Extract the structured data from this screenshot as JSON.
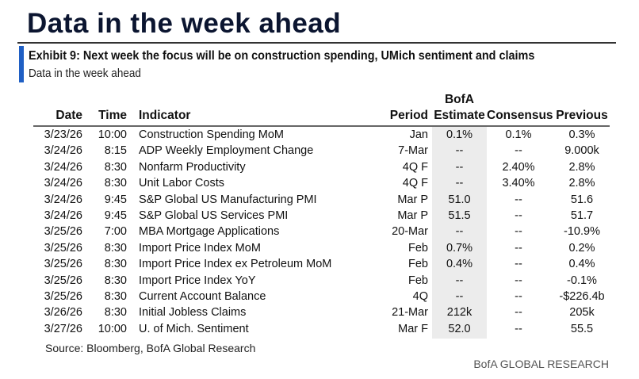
{
  "title": "Data in the week ahead",
  "exhibit_title": "Exhibit 9: Next week the focus will be on construction spending, UMich sentiment and claims",
  "exhibit_subtitle": "Data in the week ahead",
  "headers": {
    "date": "Date",
    "time": "Time",
    "indicator": "Indicator",
    "period": "Period",
    "estimate_top": "BofA",
    "estimate": "Estimate",
    "consensus": "Consensus",
    "previous": "Previous"
  },
  "rows": [
    {
      "date": "3/23/26",
      "time": "10:00",
      "indicator": "Construction Spending MoM",
      "period": "Jan",
      "estimate": "0.1%",
      "consensus": "0.1%",
      "previous": "0.3%"
    },
    {
      "date": "3/24/26",
      "time": "8:15",
      "indicator": "ADP Weekly Employment Change",
      "period": "7-Mar",
      "estimate": "--",
      "consensus": "--",
      "previous": "9.000k"
    },
    {
      "date": "3/24/26",
      "time": "8:30",
      "indicator": "Nonfarm Productivity",
      "period": "4Q F",
      "estimate": "--",
      "consensus": "2.40%",
      "previous": "2.8%"
    },
    {
      "date": "3/24/26",
      "time": "8:30",
      "indicator": "Unit Labor Costs",
      "period": "4Q F",
      "estimate": "--",
      "consensus": "3.40%",
      "previous": "2.8%"
    },
    {
      "date": "3/24/26",
      "time": "9:45",
      "indicator": "S&P Global US Manufacturing PMI",
      "period": "Mar P",
      "estimate": "51.0",
      "consensus": "--",
      "previous": "51.6"
    },
    {
      "date": "3/24/26",
      "time": "9:45",
      "indicator": "S&P Global US Services PMI",
      "period": "Mar P",
      "estimate": "51.5",
      "consensus": "--",
      "previous": "51.7"
    },
    {
      "date": "3/25/26",
      "time": "7:00",
      "indicator": "MBA Mortgage Applications",
      "period": "20-Mar",
      "estimate": "--",
      "consensus": "--",
      "previous": "-10.9%"
    },
    {
      "date": "3/25/26",
      "time": "8:30",
      "indicator": "Import Price Index MoM",
      "period": "Feb",
      "estimate": "0.7%",
      "consensus": "--",
      "previous": "0.2%"
    },
    {
      "date": "3/25/26",
      "time": "8:30",
      "indicator": "Import Price Index ex Petroleum MoM",
      "period": "Feb",
      "estimate": "0.4%",
      "consensus": "--",
      "previous": "0.4%"
    },
    {
      "date": "3/25/26",
      "time": "8:30",
      "indicator": "Import Price Index YoY",
      "period": "Feb",
      "estimate": "--",
      "consensus": "--",
      "previous": "-0.1%"
    },
    {
      "date": "3/25/26",
      "time": "8:30",
      "indicator": "Current Account Balance",
      "period": "4Q",
      "estimate": "--",
      "consensus": "--",
      "previous": "-$226.4b"
    },
    {
      "date": "3/26/26",
      "time": "8:30",
      "indicator": "Initial Jobless Claims",
      "period": "21-Mar",
      "estimate": "212k",
      "consensus": "--",
      "previous": "205k"
    },
    {
      "date": "3/27/26",
      "time": "10:00",
      "indicator": "U. of Mich. Sentiment",
      "period": "Mar F",
      "estimate": "52.0",
      "consensus": "--",
      "previous": "55.5"
    }
  ],
  "source": "Source: Bloomberg, BofA Global Research",
  "footer": "BofA GLOBAL RESEARCH"
}
